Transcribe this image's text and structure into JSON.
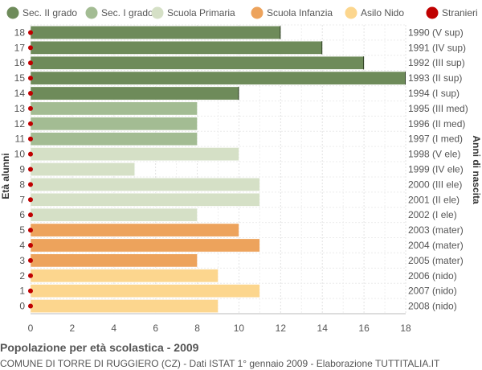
{
  "chart_data": {
    "type": "bar",
    "orientation": "horizontal",
    "title": "Popolazione per età scolastica - 2009",
    "subtitle": "COMUNE DI TORRE DI RUGGIERO (CZ) - Dati ISTAT 1° gennaio 2009 - Elaborazione TUTTITALIA.IT",
    "ylabel": "Età alunni",
    "ylabel_right": "Anni di nascita",
    "xlim": [
      0,
      18
    ],
    "xticks": [
      "0",
      "2",
      "4",
      "6",
      "8",
      "10",
      "12",
      "14",
      "16",
      "18"
    ],
    "grid": true,
    "legend_position": "top",
    "legend": [
      {
        "label": "Sec. II grado",
        "color": "#6e8b5a"
      },
      {
        "label": "Sec. I grado",
        "color": "#a3bc93"
      },
      {
        "label": "Scuola Primaria",
        "color": "#d5e0c6"
      },
      {
        "label": "Scuola Infanzia",
        "color": "#eda35c"
      },
      {
        "label": "Asilo Nido",
        "color": "#fcd68e"
      },
      {
        "label": "Stranieri",
        "color": "#c00000"
      }
    ],
    "rows": [
      {
        "age": "18",
        "birth": "1990 (V sup)",
        "value": 12,
        "group": 0,
        "stranieri": 0
      },
      {
        "age": "17",
        "birth": "1991 (IV sup)",
        "value": 14,
        "group": 0,
        "stranieri": 0
      },
      {
        "age": "16",
        "birth": "1992 (III sup)",
        "value": 16,
        "group": 0,
        "stranieri": 0
      },
      {
        "age": "15",
        "birth": "1993 (II sup)",
        "value": 18,
        "group": 0,
        "stranieri": 0
      },
      {
        "age": "14",
        "birth": "1994 (I sup)",
        "value": 10,
        "group": 0,
        "stranieri": 0
      },
      {
        "age": "13",
        "birth": "1995 (III med)",
        "value": 8,
        "group": 1,
        "stranieri": 0
      },
      {
        "age": "12",
        "birth": "1996 (II med)",
        "value": 8,
        "group": 1,
        "stranieri": 0
      },
      {
        "age": "11",
        "birth": "1997 (I med)",
        "value": 8,
        "group": 1,
        "stranieri": 0
      },
      {
        "age": "10",
        "birth": "1998 (V ele)",
        "value": 10,
        "group": 2,
        "stranieri": 0
      },
      {
        "age": "9",
        "birth": "1999 (IV ele)",
        "value": 5,
        "group": 2,
        "stranieri": 0
      },
      {
        "age": "8",
        "birth": "2000 (III ele)",
        "value": 11,
        "group": 2,
        "stranieri": 0
      },
      {
        "age": "7",
        "birth": "2001 (II ele)",
        "value": 11,
        "group": 2,
        "stranieri": 0
      },
      {
        "age": "6",
        "birth": "2002 (I ele)",
        "value": 8,
        "group": 2,
        "stranieri": 0
      },
      {
        "age": "5",
        "birth": "2003 (mater)",
        "value": 10,
        "group": 3,
        "stranieri": 0
      },
      {
        "age": "4",
        "birth": "2004 (mater)",
        "value": 11,
        "group": 3,
        "stranieri": 0
      },
      {
        "age": "3",
        "birth": "2005 (mater)",
        "value": 8,
        "group": 3,
        "stranieri": 0
      },
      {
        "age": "2",
        "birth": "2006 (nido)",
        "value": 9,
        "group": 4,
        "stranieri": 0
      },
      {
        "age": "1",
        "birth": "2007 (nido)",
        "value": 11,
        "group": 4,
        "stranieri": 0
      },
      {
        "age": "0",
        "birth": "2008 (nido)",
        "value": 9,
        "group": 4,
        "stranieri": 0
      }
    ]
  }
}
